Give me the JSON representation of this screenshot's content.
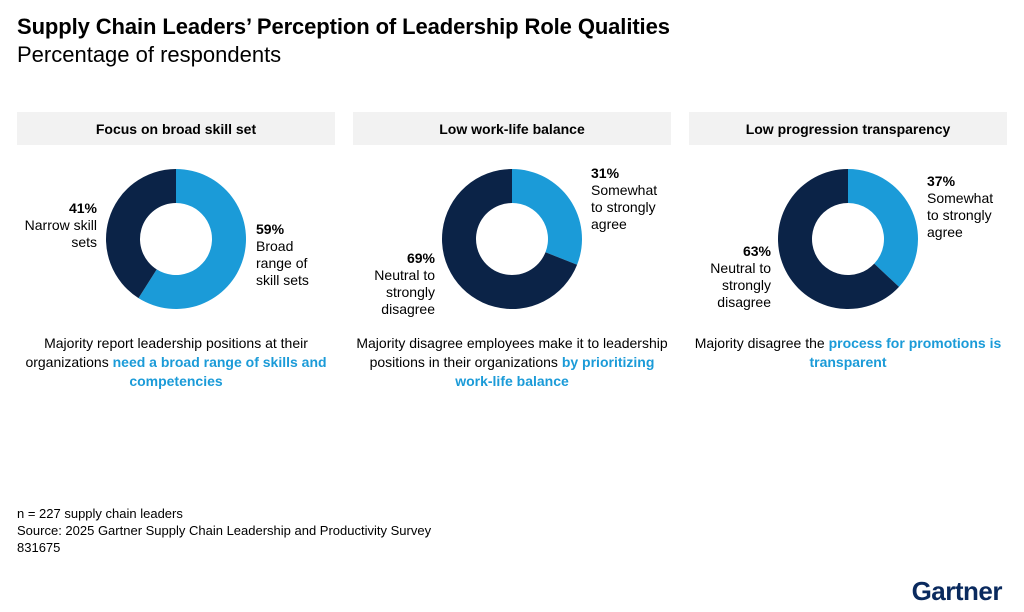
{
  "title": "Supply Chain Leaders’ Perception of Leadership Role Qualities",
  "subtitle": "Percentage of respondents",
  "colors": {
    "dark": "#0b2347",
    "light": "#1b9bd8",
    "header_bg": "#f2f2f2"
  },
  "chart_data": [
    {
      "type": "pie",
      "title": "Focus on broad skill set",
      "slices": [
        {
          "value": 59,
          "pct_label": "59%",
          "label": "Broad range of skill sets",
          "color": "#1b9bd8"
        },
        {
          "value": 41,
          "pct_label": "41%",
          "label": "Narrow skill sets",
          "color": "#0b2347"
        }
      ],
      "caption_plain": "Majority report leadership positions at their organizations ",
      "caption_highlight": "need a broad range of skills and competencies"
    },
    {
      "type": "pie",
      "title": "Low work-life balance",
      "slices": [
        {
          "value": 31,
          "pct_label": "31%",
          "label": "Somewhat to strongly agree",
          "color": "#1b9bd8"
        },
        {
          "value": 69,
          "pct_label": "69%",
          "label": "Neutral to strongly disagree",
          "color": "#0b2347"
        }
      ],
      "caption_plain": "Majority disagree employees make it to leadership positions in their organizations ",
      "caption_highlight": "by prioritizing work-life balance"
    },
    {
      "type": "pie",
      "title": "Low progression transparency",
      "slices": [
        {
          "value": 37,
          "pct_label": "37%",
          "label": "Somewhat to strongly agree",
          "color": "#1b9bd8"
        },
        {
          "value": 63,
          "pct_label": "63%",
          "label": "Neutral to strongly disagree",
          "color": "#0b2347"
        }
      ],
      "caption_plain": "Majority disagree the ",
      "caption_highlight": "process for promotions is transparent"
    }
  ],
  "footer": {
    "n": "n = 227 supply chain leaders",
    "source": "Source: 2025 Gartner Supply Chain Leadership and Productivity Survey",
    "id": "831675"
  },
  "logo_text": "Gartner"
}
